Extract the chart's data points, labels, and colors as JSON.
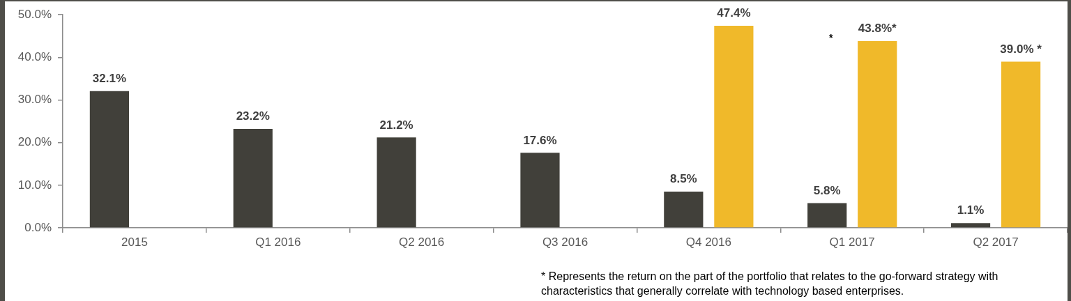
{
  "chart_data": {
    "type": "bar",
    "categories": [
      "2015",
      "Q1 2016",
      "Q2 2016",
      "Q3 2016",
      "Q4 2016",
      "Q1 2017",
      "Q2 2017"
    ],
    "series": [
      {
        "color": "#41403a",
        "values": [
          32.1,
          23.2,
          21.2,
          17.6,
          8.5,
          5.8,
          1.1
        ],
        "value_labels": [
          "32.1%",
          "23.2%",
          "21.2%",
          "17.6%",
          "8.5%",
          "5.8%",
          "1.1%"
        ]
      },
      {
        "color": "#f0b92a",
        "values": [
          null,
          null,
          null,
          null,
          47.4,
          43.8,
          39.0
        ],
        "value_labels": [
          null,
          null,
          null,
          null,
          "47.4%",
          "43.8%*",
          "39.0% *"
        ]
      }
    ],
    "ylim": [
      0,
      50
    ],
    "yticks": [
      {
        "value": 0,
        "label": "0.0%"
      },
      {
        "value": 10,
        "label": "10.0%"
      },
      {
        "value": 20,
        "label": "20.0%"
      },
      {
        "value": 30,
        "label": "30.0%"
      },
      {
        "value": 40,
        "label": "40.0%"
      },
      {
        "value": 50,
        "label": "50.0%"
      }
    ],
    "grid": false,
    "annotations": [
      "*",
      "* Represents the return on the part of the portfolio that relates to the go-forward strategy with characteristics that generally correlate with technology based enterprises."
    ]
  }
}
